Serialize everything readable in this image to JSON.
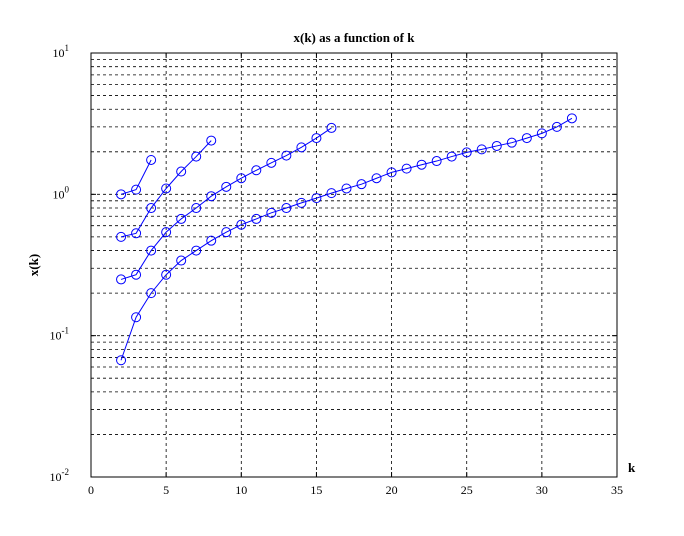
{
  "chart_data": {
    "type": "line",
    "title": "x(k) as a function of k",
    "x_label": "k",
    "y_label": "x(k)",
    "ylog": true,
    "grid": true,
    "marker": "circle",
    "xlim": [
      0,
      35
    ],
    "xticks": [
      0,
      5,
      10,
      15,
      20,
      25,
      30,
      35
    ],
    "ylim": [
      0.01,
      10
    ],
    "yticks": [
      {
        "value": 0.01,
        "label": "10",
        "exponent": "-2"
      },
      {
        "value": 0.1,
        "label": "10",
        "exponent": "-1"
      },
      {
        "value": 1,
        "label": "10",
        "exponent": "0"
      },
      {
        "value": 10,
        "label": "10",
        "exponent": "1"
      }
    ],
    "yminorticks": [
      0.02,
      0.03,
      0.04,
      0.05,
      0.06,
      0.07,
      0.08,
      0.09,
      0.2,
      0.3,
      0.4,
      0.5,
      0.6,
      0.7,
      0.8,
      0.9,
      2,
      3,
      4,
      5,
      6,
      7,
      8,
      9
    ],
    "series": [
      {
        "color": "#0000ff",
        "x": [
          2,
          3,
          4
        ],
        "values": [
          1.0,
          1.08,
          1.75
        ]
      },
      {
        "color": "#0000ff",
        "x": [
          2,
          3,
          4,
          5,
          6,
          7,
          8
        ],
        "values": [
          0.5,
          0.53,
          0.8,
          1.1,
          1.45,
          1.85,
          2.4
        ]
      },
      {
        "color": "#0000ff",
        "x": [
          2,
          3,
          4,
          5,
          6,
          7,
          8,
          9,
          10,
          11,
          12,
          13,
          14,
          15,
          16
        ],
        "values": [
          0.25,
          0.27,
          0.4,
          0.54,
          0.67,
          0.8,
          0.97,
          1.13,
          1.3,
          1.48,
          1.67,
          1.88,
          2.15,
          2.5,
          2.95
        ]
      },
      {
        "color": "#0000ff",
        "x": [
          2,
          3,
          4,
          5,
          6,
          7,
          8,
          9,
          10,
          11,
          12,
          13,
          14,
          15,
          16,
          17,
          18,
          19,
          20,
          21,
          22,
          23,
          24,
          25,
          26,
          27,
          28,
          29,
          30,
          31,
          32
        ],
        "values": [
          0.067,
          0.135,
          0.2,
          0.27,
          0.34,
          0.4,
          0.47,
          0.54,
          0.61,
          0.67,
          0.74,
          0.8,
          0.87,
          0.94,
          1.02,
          1.1,
          1.18,
          1.3,
          1.43,
          1.52,
          1.62,
          1.72,
          1.85,
          1.98,
          2.08,
          2.2,
          2.32,
          2.5,
          2.7,
          3.0,
          3.45
        ]
      }
    ]
  }
}
